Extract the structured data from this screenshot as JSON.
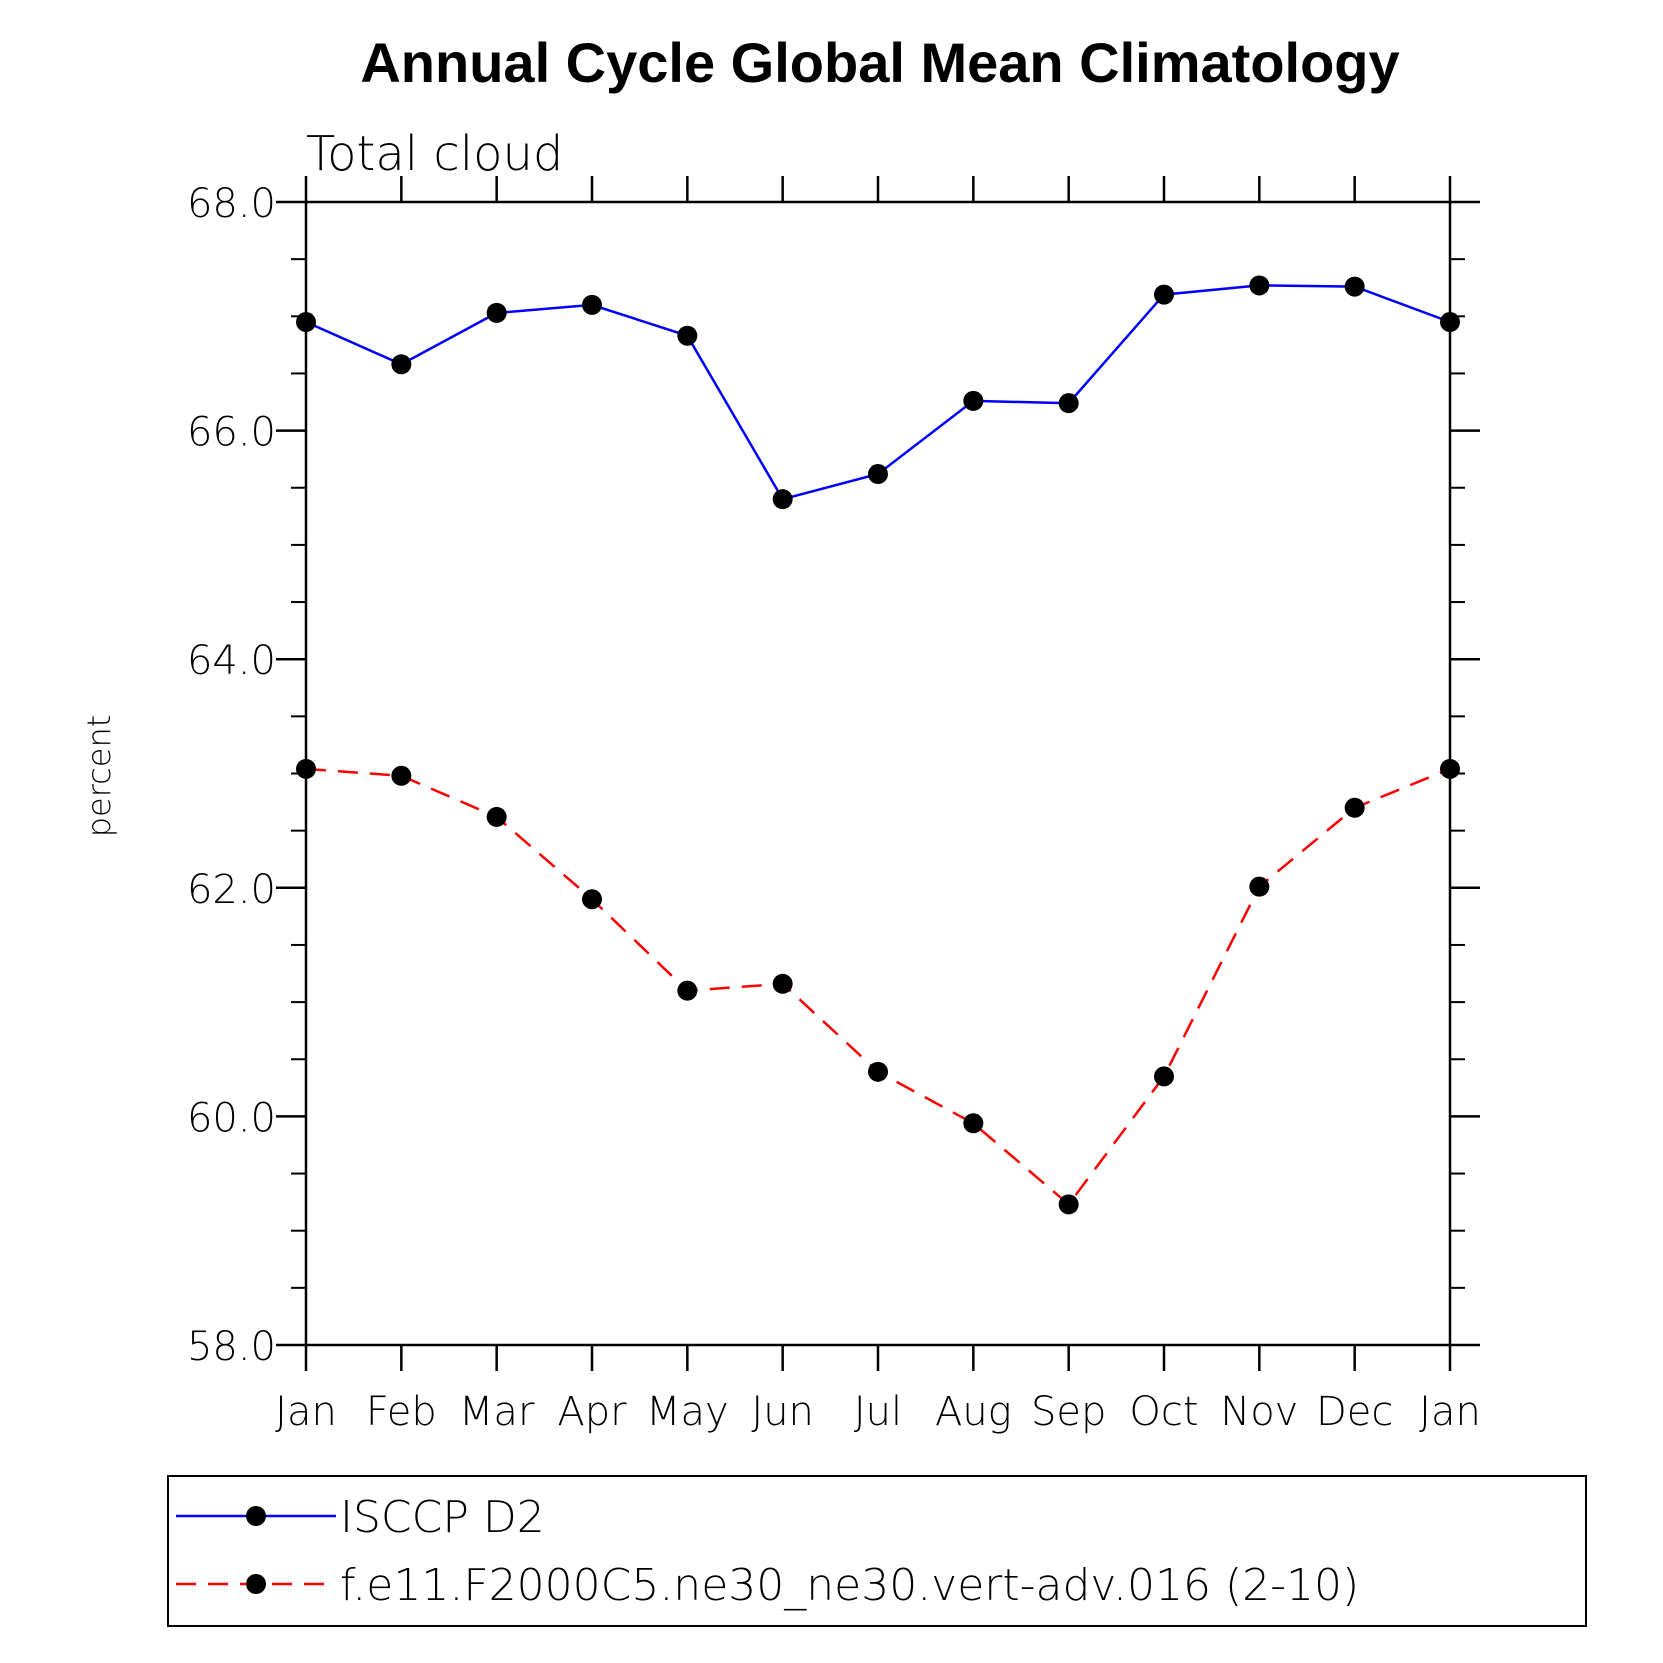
{
  "chart_data": {
    "type": "line",
    "title": "Annual Cycle Global Mean Climatology",
    "subtitle": "Total cloud",
    "ylabel": "percent",
    "xlabel": "",
    "categories": [
      "Jan",
      "Feb",
      "Mar",
      "Apr",
      "May",
      "Jun",
      "Jul",
      "Aug",
      "Sep",
      "Oct",
      "Nov",
      "Dec",
      "Jan"
    ],
    "ylim": [
      58.0,
      68.0
    ],
    "yticks": [
      "58.0",
      "60.0",
      "62.0",
      "64.0",
      "66.0",
      "68.0"
    ],
    "grid": false,
    "legend_position": "bottom",
    "series": [
      {
        "name": "ISCCP D2",
        "color": "#0000ff",
        "line_style": "solid",
        "marker": "filled-circle",
        "values": [
          66.95,
          66.58,
          67.03,
          67.1,
          66.83,
          65.4,
          65.62,
          66.26,
          66.24,
          67.19,
          67.27,
          67.26,
          66.95
        ]
      },
      {
        "name": "f.e11.F2000C5.ne30_ne30.vert-adv.016 (2-10)",
        "color": "#ff0000",
        "line_style": "dashed",
        "marker": "filled-circle",
        "values": [
          63.04,
          62.98,
          62.62,
          61.9,
          61.1,
          61.16,
          60.39,
          59.94,
          59.23,
          60.35,
          62.01,
          62.7,
          63.04
        ]
      }
    ]
  }
}
